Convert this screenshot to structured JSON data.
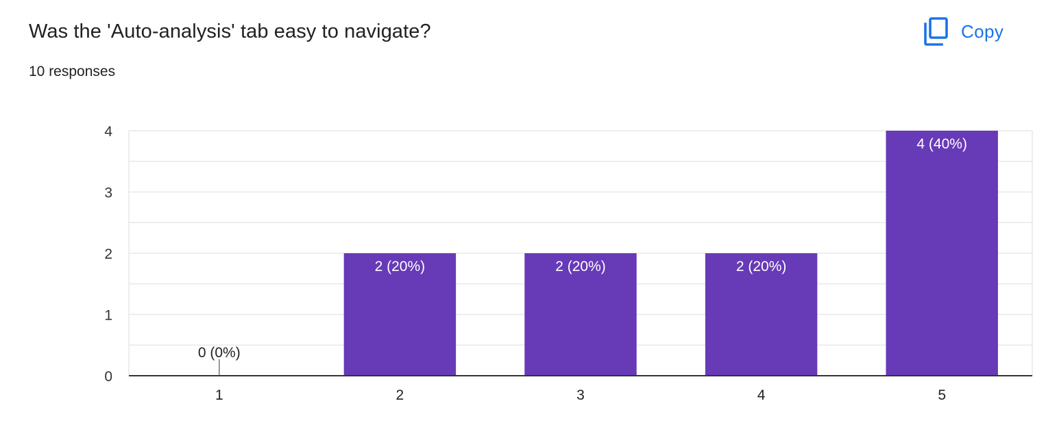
{
  "header": {
    "question": "Was the 'Auto-analysis' tab easy to navigate?",
    "responses": "10 responses"
  },
  "toolbar": {
    "copy_label": "Copy",
    "copy_icon": "copy-icon"
  },
  "colors": {
    "bar": "#673ab7",
    "accent": "#1a73e8",
    "grid": "#e8e8e8",
    "axis": "#333333",
    "text": "#202124"
  },
  "chart_data": {
    "type": "bar",
    "categories": [
      "1",
      "2",
      "3",
      "4",
      "5"
    ],
    "values": [
      0,
      2,
      2,
      2,
      4
    ],
    "data_labels": [
      "0 (0%)",
      "2 (20%)",
      "2 (20%)",
      "2 (20%)",
      "4 (40%)"
    ],
    "yticks": [
      "0",
      "1",
      "2",
      "3",
      "4"
    ],
    "ylim": [
      0,
      4
    ],
    "grid": true,
    "title": "",
    "xlabel": "",
    "ylabel": ""
  }
}
